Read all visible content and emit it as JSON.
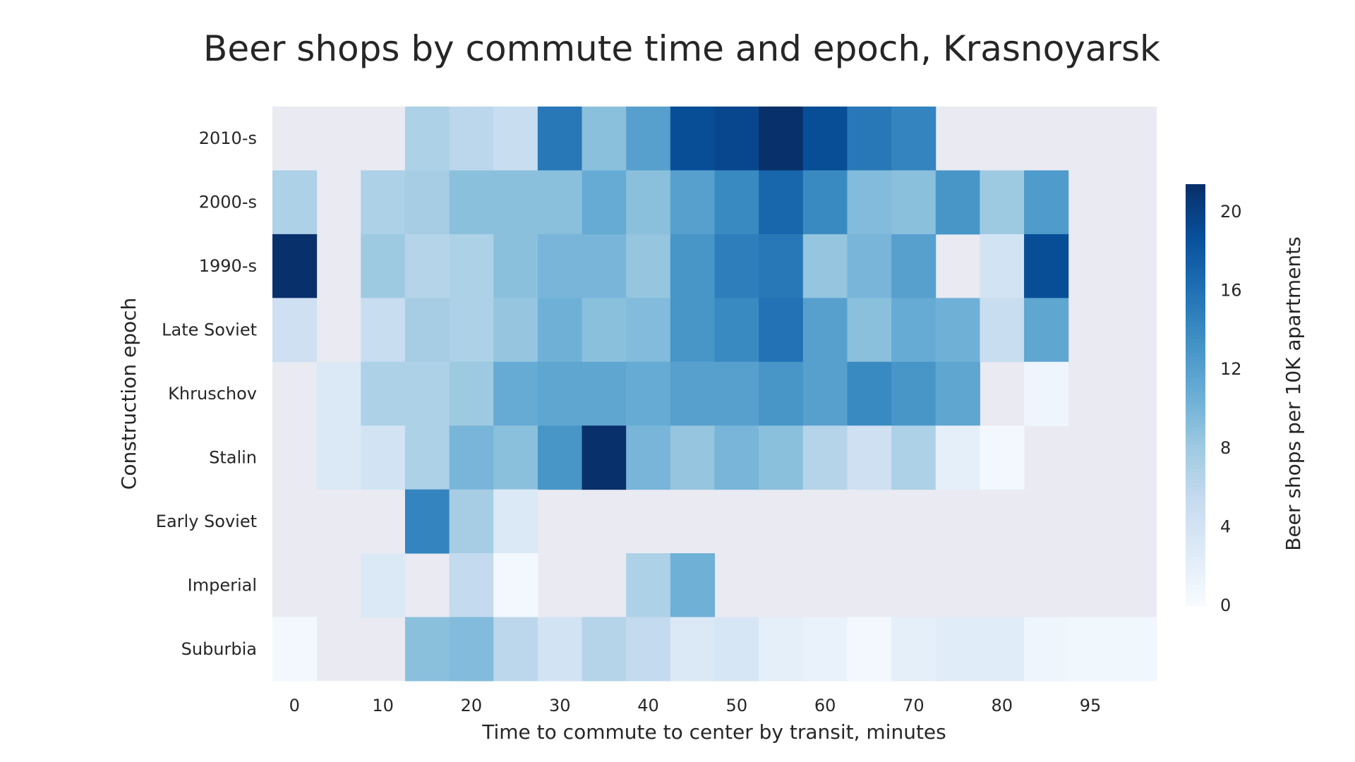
{
  "chart_data": {
    "type": "heatmap",
    "title": "Beer shops by commute time and epoch, Krasnoyarsk",
    "xlabel": "Time to commute to center by transit, minutes",
    "ylabel": "Construction epoch",
    "colorbar_label": "Beer shops per 10K apartments",
    "colormap": "Blues",
    "missing_color": "#eaeaf2",
    "vmin": 0,
    "vmax": 21.4,
    "colorbar_ticks": [
      0,
      4,
      8,
      12,
      16,
      20
    ],
    "x_tick_labels": [
      "0",
      "10",
      "20",
      "30",
      "40",
      "50",
      "60",
      "70",
      "80",
      "95"
    ],
    "x_tick_columns": [
      0,
      2,
      4,
      6,
      8,
      10,
      12,
      14,
      16,
      18
    ],
    "rows": [
      "2010-s",
      "2000-s",
      "1990-s",
      "Late Soviet",
      "Khruschov",
      "Stalin",
      "Early Soviet",
      "Imperial",
      "Suburbia"
    ],
    "values": [
      [
        null,
        null,
        null,
        7,
        6,
        5,
        15.5,
        9,
        12,
        19,
        19.5,
        21.4,
        19,
        15.5,
        14.5,
        null,
        null,
        null,
        null,
        null
      ],
      [
        7,
        null,
        7,
        7.5,
        9,
        9,
        9,
        11,
        9,
        12,
        14,
        17,
        14,
        9.5,
        9,
        13,
        8,
        12.5,
        null,
        null
      ],
      [
        21.4,
        null,
        8,
        6.5,
        7,
        9,
        10,
        10,
        8.5,
        13,
        15,
        15.5,
        8.5,
        10,
        12,
        null,
        4,
        19,
        null,
        null
      ],
      [
        4.5,
        null,
        5,
        7.5,
        7,
        8.5,
        10.5,
        9,
        9.5,
        13,
        14,
        16,
        12,
        9,
        11,
        10.5,
        5,
        11.5,
        null,
        null
      ],
      [
        null,
        3,
        7,
        7,
        8,
        11,
        11.5,
        11.5,
        11,
        12,
        12,
        13,
        12,
        14,
        13,
        11.5,
        null,
        1,
        null,
        null
      ],
      [
        null,
        3,
        4,
        7,
        10,
        9,
        13,
        21.4,
        10,
        8.5,
        10,
        9,
        6.5,
        4.5,
        7,
        2,
        0.5,
        null,
        null,
        null
      ],
      [
        null,
        null,
        null,
        14.5,
        7.5,
        3,
        null,
        null,
        null,
        null,
        null,
        null,
        null,
        null,
        null,
        null,
        null,
        null,
        null,
        null
      ],
      [
        null,
        null,
        3,
        null,
        5.5,
        0.5,
        null,
        null,
        7,
        10.5,
        null,
        null,
        null,
        null,
        null,
        null,
        null,
        null,
        null,
        null
      ],
      [
        0.5,
        null,
        null,
        9,
        9.5,
        6,
        4,
        6.5,
        5.5,
        3,
        3.5,
        2,
        1.5,
        0.5,
        2,
        2.5,
        2.5,
        1,
        0.7,
        0.7
      ]
    ]
  }
}
